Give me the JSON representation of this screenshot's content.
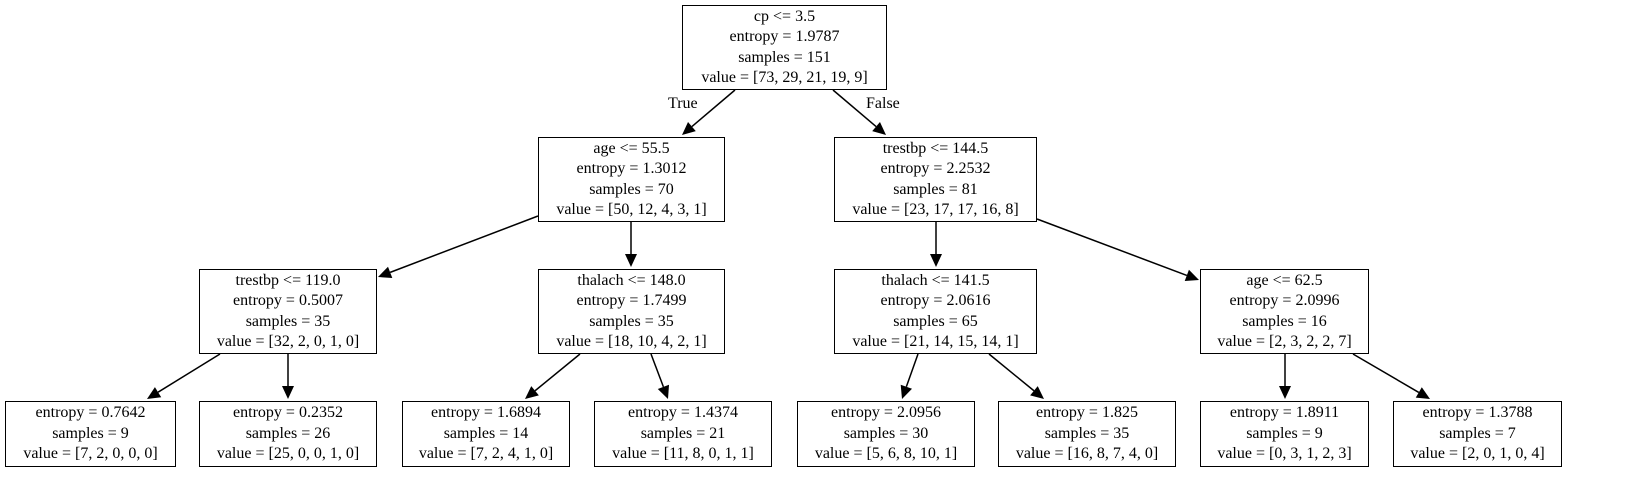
{
  "tree": {
    "nodes": [
      {
        "id": "root",
        "lines": [
          "cp <= 3.5",
          "entropy = 1.9787",
          "samples = 151",
          "value = [73, 29, 21, 19, 9]"
        ]
      },
      {
        "id": "n1",
        "lines": [
          "age <= 55.5",
          "entropy = 1.3012",
          "samples = 70",
          "value = [50, 12, 4, 3, 1]"
        ]
      },
      {
        "id": "n2",
        "lines": [
          "trestbp <= 144.5",
          "entropy = 2.2532",
          "samples = 81",
          "value = [23, 17, 17, 16, 8]"
        ]
      },
      {
        "id": "n3",
        "lines": [
          "trestbp <= 119.0",
          "entropy = 0.5007",
          "samples = 35",
          "value = [32, 2, 0, 1, 0]"
        ]
      },
      {
        "id": "n4",
        "lines": [
          "thalach <= 148.0",
          "entropy = 1.7499",
          "samples = 35",
          "value = [18, 10, 4, 2, 1]"
        ]
      },
      {
        "id": "n5",
        "lines": [
          "thalach <= 141.5",
          "entropy = 2.0616",
          "samples = 65",
          "value = [21, 14, 15, 14, 1]"
        ]
      },
      {
        "id": "n6",
        "lines": [
          "age <= 62.5",
          "entropy = 2.0996",
          "samples = 16",
          "value = [2, 3, 2, 2, 7]"
        ]
      },
      {
        "id": "l1",
        "lines": [
          "entropy = 0.7642",
          "samples = 9",
          "value = [7, 2, 0, 0, 0]"
        ]
      },
      {
        "id": "l2",
        "lines": [
          "entropy = 0.2352",
          "samples = 26",
          "value = [25, 0, 0, 1, 0]"
        ]
      },
      {
        "id": "l3",
        "lines": [
          "entropy = 1.6894",
          "samples = 14",
          "value = [7, 2, 4, 1, 0]"
        ]
      },
      {
        "id": "l4",
        "lines": [
          "entropy = 1.4374",
          "samples = 21",
          "value = [11, 8, 0, 1, 1]"
        ]
      },
      {
        "id": "l5",
        "lines": [
          "entropy = 2.0956",
          "samples = 30",
          "value = [5, 6, 8, 10, 1]"
        ]
      },
      {
        "id": "l6",
        "lines": [
          "entropy = 1.825",
          "samples = 35",
          "value = [16, 8, 7, 4, 0]"
        ]
      },
      {
        "id": "l7",
        "lines": [
          "entropy = 1.8911",
          "samples = 9",
          "value = [0, 3, 1, 2, 3]"
        ]
      },
      {
        "id": "l8",
        "lines": [
          "entropy = 1.3788",
          "samples = 7",
          "value = [2, 0, 1, 0, 4]"
        ]
      }
    ],
    "edges": [
      {
        "from": "root",
        "to": "n1",
        "label": "True"
      },
      {
        "from": "root",
        "to": "n2",
        "label": "False"
      },
      {
        "from": "n1",
        "to": "n3",
        "label": ""
      },
      {
        "from": "n1",
        "to": "n4",
        "label": ""
      },
      {
        "from": "n2",
        "to": "n5",
        "label": ""
      },
      {
        "from": "n2",
        "to": "n6",
        "label": ""
      },
      {
        "from": "n3",
        "to": "l1",
        "label": ""
      },
      {
        "from": "n3",
        "to": "l2",
        "label": ""
      },
      {
        "from": "n4",
        "to": "l3",
        "label": ""
      },
      {
        "from": "n4",
        "to": "l4",
        "label": ""
      },
      {
        "from": "n5",
        "to": "l5",
        "label": ""
      },
      {
        "from": "n5",
        "to": "l6",
        "label": ""
      },
      {
        "from": "n6",
        "to": "l7",
        "label": ""
      },
      {
        "from": "n6",
        "to": "l8",
        "label": ""
      }
    ]
  }
}
